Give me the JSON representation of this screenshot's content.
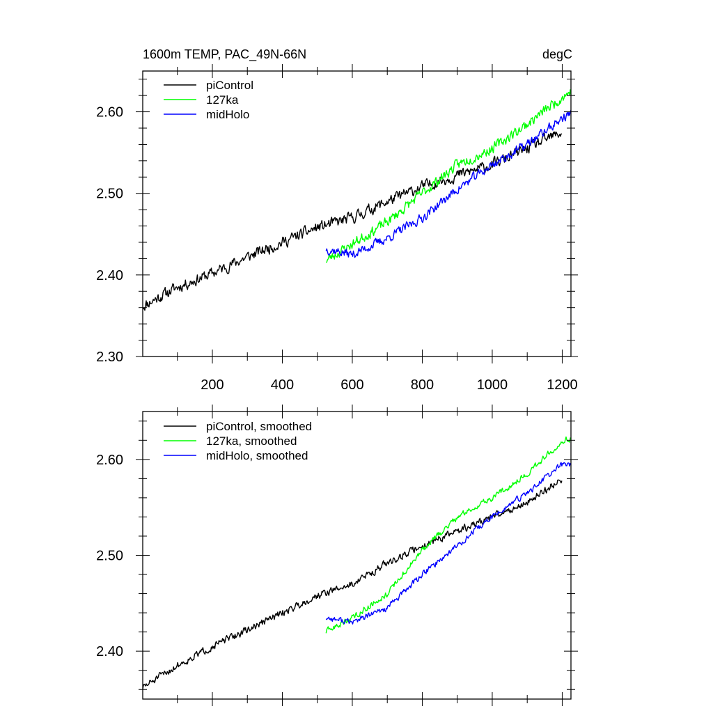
{
  "figure": {
    "title_left": "1600m TEMP, PAC_49N-66N",
    "title_right": "degC"
  },
  "chart_data": [
    {
      "type": "line",
      "xlim": [
        1,
        1225
      ],
      "ylim": [
        2.3,
        2.65
      ],
      "x_ticks": [
        200,
        400,
        600,
        800,
        1000,
        1200
      ],
      "x_tick_labels": [
        "200",
        "400",
        "600",
        "800",
        "1000",
        "1200"
      ],
      "y_ticks": [
        2.3,
        2.4,
        2.5,
        2.6
      ],
      "y_tick_labels": [
        "2.30",
        "2.40",
        "2.50",
        "2.60"
      ],
      "legend_position": "top-left",
      "series": [
        {
          "name": "piControl",
          "color": "#000000",
          "x_start": 1,
          "x_end": 1200,
          "anchors": [
            [
              1,
              2.362
            ],
            [
              100,
              2.385
            ],
            [
              200,
              2.402
            ],
            [
              300,
              2.422
            ],
            [
              400,
              2.44
            ],
            [
              500,
              2.458
            ],
            [
              600,
              2.47
            ],
            [
              700,
              2.49
            ],
            [
              800,
              2.508
            ],
            [
              900,
              2.522
            ],
            [
              1000,
              2.535
            ],
            [
              1100,
              2.555
            ],
            [
              1200,
              2.575
            ]
          ],
          "noise": 0.011,
          "seed": 11
        },
        {
          "name": "127ka",
          "color": "#00ff00",
          "x_start": 525,
          "x_end": 1225,
          "anchors": [
            [
              525,
              2.418
            ],
            [
              600,
              2.438
            ],
            [
              700,
              2.465
            ],
            [
              800,
              2.5
            ],
            [
              900,
              2.535
            ],
            [
              1000,
              2.555
            ],
            [
              1100,
              2.585
            ],
            [
              1200,
              2.618
            ],
            [
              1225,
              2.625
            ]
          ],
          "noise": 0.01,
          "seed": 23
        },
        {
          "name": "midHolo",
          "color": "#0000ff",
          "x_start": 525,
          "x_end": 1225,
          "anchors": [
            [
              525,
              2.432
            ],
            [
              600,
              2.425
            ],
            [
              700,
              2.445
            ],
            [
              800,
              2.47
            ],
            [
              900,
              2.505
            ],
            [
              1000,
              2.535
            ],
            [
              1100,
              2.56
            ],
            [
              1200,
              2.592
            ],
            [
              1225,
              2.598
            ]
          ],
          "noise": 0.009,
          "seed": 37
        }
      ]
    },
    {
      "type": "line",
      "xlim": [
        1,
        1225
      ],
      "ylim": [
        2.35,
        2.65
      ],
      "x_ticks": [
        200,
        400,
        600,
        800,
        1000,
        1200
      ],
      "x_tick_labels": [],
      "y_ticks": [
        2.4,
        2.5,
        2.6
      ],
      "y_tick_labels": [
        "2.40",
        "2.50",
        "2.60"
      ],
      "legend_position": "top-left",
      "series": [
        {
          "name": "piControl, smoothed",
          "color": "#000000",
          "x_start": 1,
          "x_end": 1200,
          "anchors": [
            [
              1,
              2.362
            ],
            [
              100,
              2.385
            ],
            [
              200,
              2.405
            ],
            [
              300,
              2.422
            ],
            [
              400,
              2.44
            ],
            [
              500,
              2.458
            ],
            [
              600,
              2.47
            ],
            [
              700,
              2.492
            ],
            [
              800,
              2.51
            ],
            [
              900,
              2.525
            ],
            [
              1000,
              2.54
            ],
            [
              1100,
              2.555
            ],
            [
              1200,
              2.58
            ]
          ],
          "noise": 0.006,
          "seed": 51
        },
        {
          "name": "127ka, smoothed",
          "color": "#00ff00",
          "x_start": 525,
          "x_end": 1225,
          "anchors": [
            [
              525,
              2.42
            ],
            [
              600,
              2.435
            ],
            [
              700,
              2.46
            ],
            [
              800,
              2.505
            ],
            [
              900,
              2.54
            ],
            [
              1000,
              2.56
            ],
            [
              1100,
              2.585
            ],
            [
              1200,
              2.62
            ],
            [
              1225,
              2.622
            ]
          ],
          "noise": 0.005,
          "seed": 63
        },
        {
          "name": "midHolo, smoothed",
          "color": "#0000ff",
          "x_start": 525,
          "x_end": 1225,
          "anchors": [
            [
              525,
              2.435
            ],
            [
              600,
              2.43
            ],
            [
              700,
              2.445
            ],
            [
              800,
              2.48
            ],
            [
              900,
              2.51
            ],
            [
              1000,
              2.54
            ],
            [
              1100,
              2.565
            ],
            [
              1200,
              2.595
            ],
            [
              1225,
              2.595
            ]
          ],
          "noise": 0.005,
          "seed": 77
        }
      ]
    }
  ]
}
